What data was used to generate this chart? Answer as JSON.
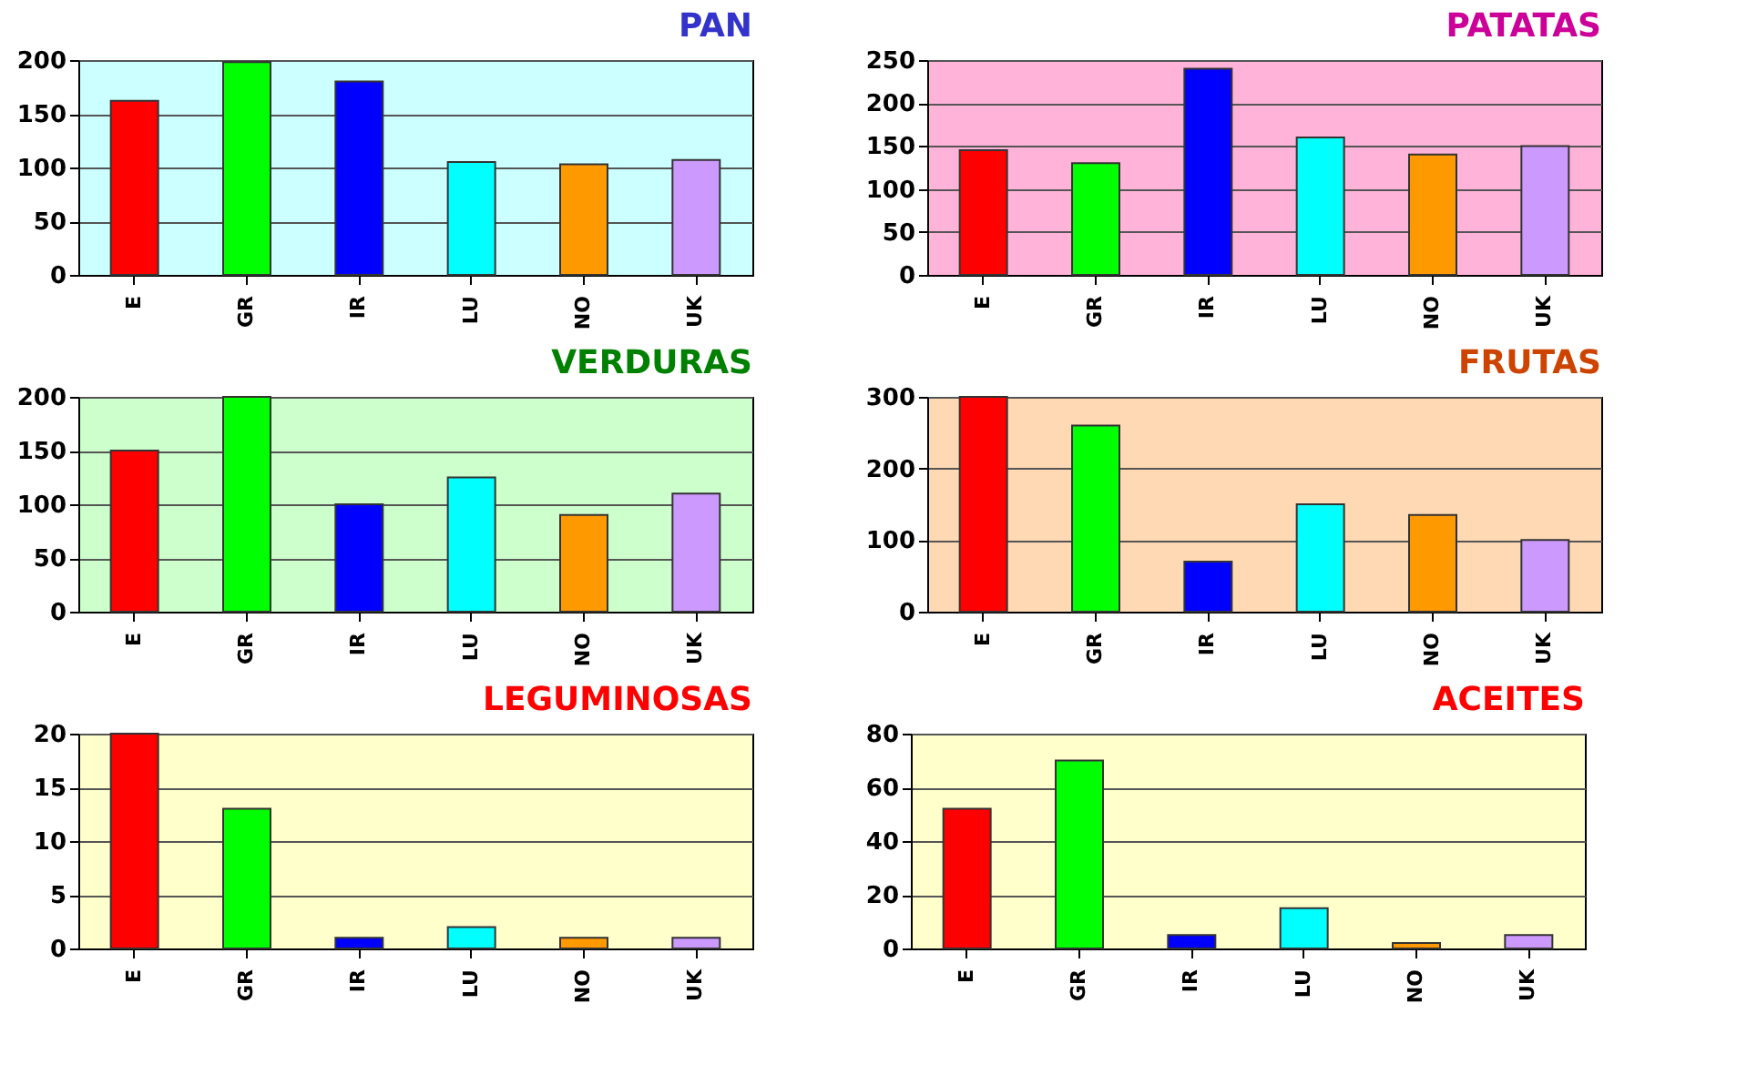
{
  "chart_data": [
    {
      "type": "bar",
      "title": "PAN",
      "categories": [
        "E",
        "GR",
        "IR",
        "LU",
        "NO",
        "UK"
      ],
      "values": [
        162,
        198,
        180,
        105,
        103,
        107
      ],
      "colors": [
        "#ff0000",
        "#00ff00",
        "#0000ff",
        "#00ffff",
        "#ff9900",
        "#cc99ff"
      ],
      "ylim": [
        0,
        200
      ],
      "yticks": [
        0,
        50,
        100,
        150,
        200
      ],
      "grid": "y"
    },
    {
      "type": "bar",
      "title": "PATATAS",
      "categories": [
        "E",
        "GR",
        "IR",
        "LU",
        "NO",
        "UK"
      ],
      "values": [
        145,
        130,
        240,
        160,
        140,
        150
      ],
      "colors": [
        "#ff0000",
        "#00ff00",
        "#0000ff",
        "#00ffff",
        "#ff9900",
        "#cc99ff"
      ],
      "ylim": [
        0,
        250
      ],
      "yticks": [
        0,
        50,
        100,
        150,
        200,
        250
      ],
      "grid": "y"
    },
    {
      "type": "bar",
      "title": "VERDURAS",
      "categories": [
        "E",
        "GR",
        "IR",
        "LU",
        "NO",
        "UK"
      ],
      "values": [
        150,
        200,
        100,
        125,
        90,
        110
      ],
      "colors": [
        "#ff0000",
        "#00ff00",
        "#0000ff",
        "#00ffff",
        "#ff9900",
        "#cc99ff"
      ],
      "ylim": [
        0,
        200
      ],
      "yticks": [
        0,
        50,
        100,
        150,
        200
      ],
      "grid": "y"
    },
    {
      "type": "bar",
      "title": "FRUTAS",
      "categories": [
        "E",
        "GR",
        "IR",
        "LU",
        "NO",
        "UK"
      ],
      "values": [
        300,
        260,
        70,
        150,
        135,
        100
      ],
      "colors": [
        "#ff0000",
        "#00ff00",
        "#0000ff",
        "#00ffff",
        "#ff9900",
        "#cc99ff"
      ],
      "ylim": [
        0,
        300
      ],
      "yticks": [
        0,
        100,
        200,
        300
      ],
      "grid": "y"
    },
    {
      "type": "bar",
      "title": "LEGUMINOSAS",
      "categories": [
        "E",
        "GR",
        "IR",
        "LU",
        "NO",
        "UK"
      ],
      "values": [
        20,
        13,
        1,
        2,
        1,
        1
      ],
      "colors": [
        "#ff0000",
        "#00ff00",
        "#0000ff",
        "#00ffff",
        "#ff9900",
        "#cc99ff"
      ],
      "ylim": [
        0,
        20
      ],
      "yticks": [
        0,
        5,
        10,
        15,
        20
      ],
      "grid": "y"
    },
    {
      "type": "bar",
      "title": "ACEITES",
      "categories": [
        "E",
        "GR",
        "IR",
        "LU",
        "NO",
        "UK"
      ],
      "values": [
        52,
        70,
        5,
        15,
        2,
        5
      ],
      "colors": [
        "#ff0000",
        "#00ff00",
        "#0000ff",
        "#00ffff",
        "#ff9900",
        "#cc99ff"
      ],
      "ylim": [
        0,
        80
      ],
      "yticks": [
        0,
        20,
        40,
        60,
        80
      ],
      "grid": "y"
    }
  ]
}
